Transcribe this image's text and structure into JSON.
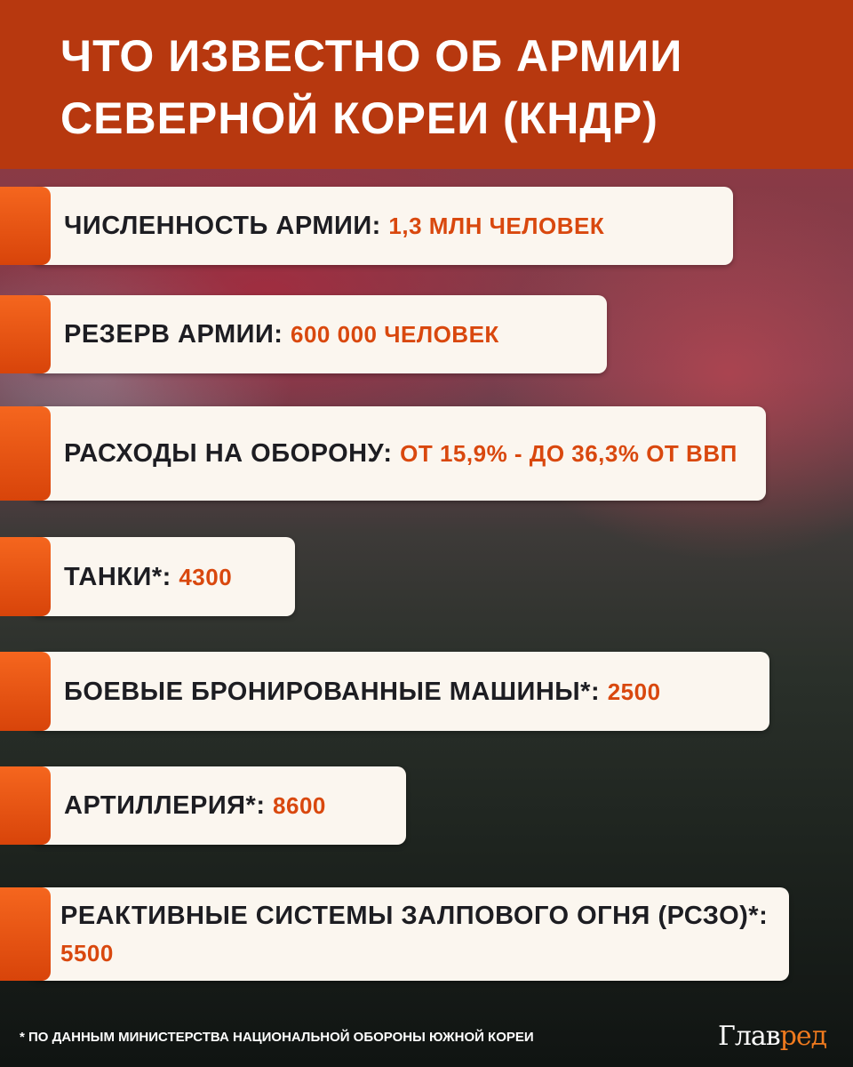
{
  "title": {
    "line1": "ЧТО ИЗВЕСТНО ОБ АРМИИ",
    "line2": "СЕВЕРНОЙ КОРЕИ (КНДР)"
  },
  "facts": [
    {
      "label": "ЧИСЛЕННОСТЬ АРМИИ:",
      "value": "1,3 МЛН ЧЕЛОВЕК"
    },
    {
      "label": "РЕЗЕРВ АРМИИ:",
      "value": "600 000 ЧЕЛОВЕК"
    },
    {
      "label": "РАСХОДЫ НА ОБОРОНУ:",
      "value": "ОТ 15,9% - ДО 36,3% ОТ ВВП"
    },
    {
      "label": "ТАНКИ*:",
      "value": "4300"
    },
    {
      "label": "БОЕВЫЕ БРОНИРОВАННЫЕ МАШИНЫ*:",
      "value": "2500"
    },
    {
      "label": "АРТИЛЛЕРИЯ*:",
      "value": "8600"
    },
    {
      "label": "РЕАКТИВНЫЕ СИСТЕМЫ ЗАЛПОВОГО ОГНЯ (РСЗО)*:",
      "value": "5500"
    }
  ],
  "footnote": "* ПО ДАННЫМ МИНИСТЕРСТВА НАЦИОНАЛЬНОЙ ОБОРОНЫ ЮЖНОЙ КОРЕИ",
  "logo": {
    "part1": "Глав",
    "part2": "ред"
  },
  "colors": {
    "header": "#b7380f",
    "accent": "#d9480e",
    "card": "#fbf6ef"
  }
}
